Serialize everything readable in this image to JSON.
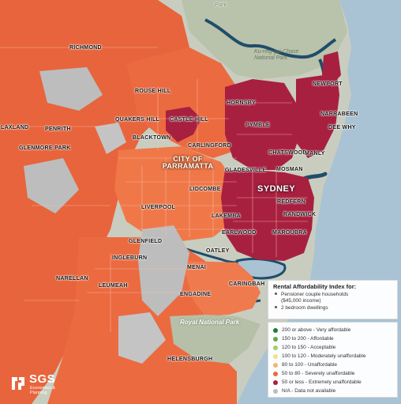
{
  "places": [
    {
      "id": "park-top",
      "label": "Park"
    },
    {
      "id": "richmond",
      "label": "RICHMOND"
    },
    {
      "id": "rouse-hill",
      "label": "ROUSE HILL"
    },
    {
      "id": "hornsby",
      "label": "HORNSBY"
    },
    {
      "id": "newport",
      "label": "NEWPORT"
    },
    {
      "id": "narrabeen",
      "label": "NARRABEEN"
    },
    {
      "id": "dee-why",
      "label": "DEE WHY"
    },
    {
      "id": "quakers-hill",
      "label": "QUAKERS HILL"
    },
    {
      "id": "castle-hill",
      "label": "CASTLE HILL"
    },
    {
      "id": "pymble",
      "label": "PYMBLE"
    },
    {
      "id": "laxland",
      "label": "LAXLAND"
    },
    {
      "id": "penrith",
      "label": "PENRITH"
    },
    {
      "id": "blacktown",
      "label": "BLACKTOWN"
    },
    {
      "id": "carlingford",
      "label": "CARLINGFORD"
    },
    {
      "id": "chatswood",
      "label": "CHATSWOOD"
    },
    {
      "id": "manly",
      "label": "MANLY"
    },
    {
      "id": "glenmore-park",
      "label": "GLENMORE PARK"
    },
    {
      "id": "gladesville",
      "label": "GLADESVILLE"
    },
    {
      "id": "mosman",
      "label": "MOSMAN"
    },
    {
      "id": "lidcombe",
      "label": "LIDCOMBE"
    },
    {
      "id": "redfern",
      "label": "REDFERN"
    },
    {
      "id": "liverpool",
      "label": "LIVERPOOL"
    },
    {
      "id": "lakemba",
      "label": "LAKEMBA"
    },
    {
      "id": "randwick",
      "label": "RANDWICK"
    },
    {
      "id": "earlwood",
      "label": "EARLWOOD"
    },
    {
      "id": "maroubra",
      "label": "MAROUBRA"
    },
    {
      "id": "glenfield",
      "label": "GLENFIELD"
    },
    {
      "id": "oatley",
      "label": "OATLEY"
    },
    {
      "id": "ingleburn",
      "label": "INGLEBURN"
    },
    {
      "id": "menai",
      "label": "MENAI"
    },
    {
      "id": "caringbah",
      "label": "CARINGBAH"
    },
    {
      "id": "narellan",
      "label": "NARELLAN"
    },
    {
      "id": "leumeah",
      "label": "LEUMEAH"
    },
    {
      "id": "engadine",
      "label": "ENGADINE"
    },
    {
      "id": "helensburgh",
      "label": "HELENSBURGH"
    }
  ],
  "city_labels": {
    "parramatta": "CITY OF PARRAMATTA",
    "sydney": "SYDNEY"
  },
  "parks": {
    "kuringgai": "Ku-ring-gai Chase National Park",
    "royal": "Royal National Park"
  },
  "legend": {
    "title": "Rental Affordability Index for:",
    "line1": "Pensioner couple households",
    "line1b": "($45,000 income)",
    "line2": "2 bedroom dwellings",
    "categories": [
      {
        "label": "200 or above - Very affordable",
        "color": "#1f7a3a"
      },
      {
        "label": "150 to 200 - Affordable",
        "color": "#61a84f"
      },
      {
        "label": "120 to 150 - Acceptable",
        "color": "#a8cc6a"
      },
      {
        "label": "100 to 120 - Moderately unaffordable",
        "color": "#f2e08a"
      },
      {
        "label": "80 to 100 - Unaffordable",
        "color": "#f3b574"
      },
      {
        "label": "50 to 80 - Severely unaffordable",
        "color": "#ec6a40"
      },
      {
        "label": "50 or less - Extremely unaffordable",
        "color": "#a8203f"
      },
      {
        "label": "N/A - Data not available",
        "color": "#bdbdbd"
      }
    ]
  },
  "logo": {
    "name": "SGS",
    "subtitle": "Economics & Planning"
  }
}
